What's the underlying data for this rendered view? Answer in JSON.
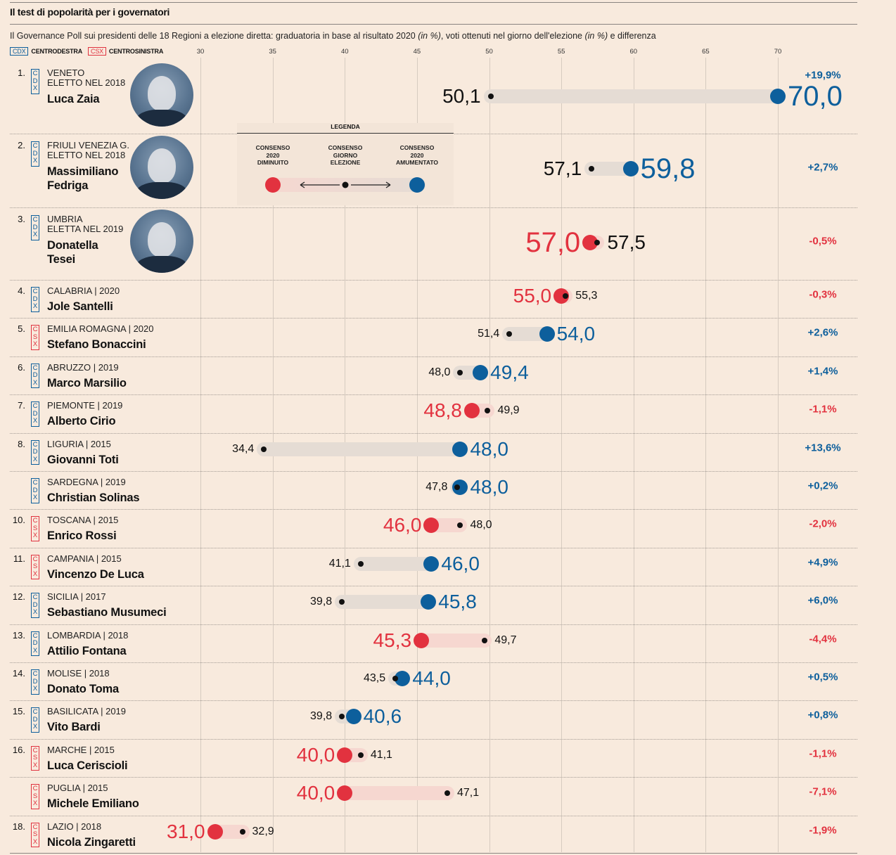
{
  "title": "Il test di popolarità per i governatori",
  "subtitle": {
    "part1": "Il Governance Poll sui presidenti delle 18 Regioni a elezione diretta: graduatoria in base al risultato 2020 ",
    "unit1": "(in %)",
    "part2": ", voti ottenuti nel giorno dell'elezione ",
    "unit2": "(in %)",
    "part3": " e differenza"
  },
  "parties": {
    "cdx": {
      "badge": "CDX",
      "label": "CENTRODESTRA",
      "color": "#0d5f9c"
    },
    "csx": {
      "badge": "CSX",
      "label": "CENTROSINISTRA",
      "color": "#e0323f"
    }
  },
  "legend": {
    "title": "LEGENDA",
    "decreased": "CONSENSO\n2020\nDIMINUITO",
    "election": "CONSENSO\nGIORNO\nELEZIONE",
    "increased": "CONSENSO\n2020\nAMUMENTATO"
  },
  "colors": {
    "increase": "#0d5f9c",
    "decrease": "#e2323f",
    "bar_increase": "#e5dcd4",
    "bar_decrease": "#f6d7d0"
  },
  "chart_data": {
    "type": "dumbbell",
    "title": "Il test di popolarità per i governatori",
    "xlim": [
      30,
      70
    ],
    "x_ticks": [
      "30",
      "35",
      "40",
      "45",
      "50",
      "55",
      "60",
      "65",
      "70"
    ],
    "series": [
      {
        "name": "Consenso giorno elezione"
      },
      {
        "name": "Consenso 2020"
      }
    ],
    "rows": [
      {
        "rank": "1.",
        "party": "cdx",
        "region": "VENETO",
        "elected": "ELETTO NEL 2018",
        "name": "Luca Zaia",
        "photo": true,
        "election": 50.1,
        "y2020": 70.0,
        "election_label": "50,1",
        "label_2020": "70,0",
        "diff": "+19,9%"
      },
      {
        "rank": "2.",
        "party": "cdx",
        "region": "FRIULI VENEZIA G.",
        "elected": "ELETTO NEL 2018",
        "name": "Massimiliano\nFedriga",
        "photo": true,
        "election": 57.1,
        "y2020": 59.8,
        "election_label": "57,1",
        "label_2020": "59,8",
        "diff": "+2,7%"
      },
      {
        "rank": "3.",
        "party": "cdx",
        "region": "UMBRIA",
        "elected": "ELETTA NEL 2019",
        "name": "Donatella\nTesei",
        "photo": true,
        "election": 57.5,
        "y2020": 57.0,
        "election_label": "57,5",
        "label_2020": "57,0",
        "diff": "-0,5%"
      },
      {
        "rank": "4.",
        "party": "cdx",
        "region": "CALABRIA | 2020",
        "name": "Jole Santelli",
        "election": 55.3,
        "y2020": 55.0,
        "election_label": "55,3",
        "label_2020": "55,0",
        "diff": "-0,3%"
      },
      {
        "rank": "5.",
        "party": "csx",
        "region": "EMILIA ROMAGNA | 2020",
        "name": "Stefano Bonaccini",
        "election": 51.4,
        "y2020": 54.0,
        "election_label": "51,4",
        "label_2020": "54,0",
        "diff": "+2,6%"
      },
      {
        "rank": "6.",
        "party": "cdx",
        "region": "ABRUZZO | 2019",
        "name": "Marco Marsilio",
        "election": 48.0,
        "y2020": 49.4,
        "election_label": "48,0",
        "label_2020": "49,4",
        "diff": "+1,4%"
      },
      {
        "rank": "7.",
        "party": "cdx",
        "region": "PIEMONTE | 2019",
        "name": "Alberto Cirio",
        "election": 49.9,
        "y2020": 48.8,
        "election_label": "49,9",
        "label_2020": "48,8",
        "diff": "-1,1%"
      },
      {
        "rank": "8.",
        "party": "cdx",
        "region": "LIGURIA | 2015",
        "name": "Giovanni Toti",
        "election": 34.4,
        "y2020": 48.0,
        "election_label": "34,4",
        "label_2020": "48,0",
        "diff": "+13,6%"
      },
      {
        "rank": "",
        "party": "cdx",
        "region": "SARDEGNA | 2019",
        "name": "Christian Solinas",
        "election": 47.8,
        "y2020": 48.0,
        "election_label": "47,8",
        "label_2020": "48,0",
        "diff": "+0,2%"
      },
      {
        "rank": "10.",
        "party": "csx",
        "region": "TOSCANA | 2015",
        "name": "Enrico Rossi",
        "election": 48.0,
        "y2020": 46.0,
        "election_label": "48,0",
        "label_2020": "46,0",
        "diff": "-2,0%"
      },
      {
        "rank": "11.",
        "party": "csx",
        "region": "CAMPANIA | 2015",
        "name": "Vincenzo De Luca",
        "election": 41.1,
        "y2020": 46.0,
        "election_label": "41,1",
        "label_2020": "46,0",
        "diff": "+4,9%"
      },
      {
        "rank": "12.",
        "party": "cdx",
        "region": "SICILIA | 2017",
        "name": "Sebastiano Musumeci",
        "election": 39.8,
        "y2020": 45.8,
        "election_label": "39,8",
        "label_2020": "45,8",
        "diff": "+6,0%"
      },
      {
        "rank": "13.",
        "party": "cdx",
        "region": "LOMBARDIA | 2018",
        "name": "Attilio Fontana",
        "election": 49.7,
        "y2020": 45.3,
        "election_label": "49,7",
        "label_2020": "45,3",
        "diff": "-4,4%"
      },
      {
        "rank": "14.",
        "party": "cdx",
        "region": "MOLISE | 2018",
        "name": "Donato Toma",
        "election": 43.5,
        "y2020": 44.0,
        "election_label": "43,5",
        "label_2020": "44,0",
        "diff": "+0,5%"
      },
      {
        "rank": "15.",
        "party": "cdx",
        "region": "BASILICATA | 2019",
        "name": "Vito Bardi",
        "election": 39.8,
        "y2020": 40.6,
        "election_label": "39,8",
        "label_2020": "40,6",
        "diff": "+0,8%"
      },
      {
        "rank": "16.",
        "party": "csx",
        "region": "MARCHE | 2015",
        "name": "Luca Ceriscioli",
        "election": 41.1,
        "y2020": 40.0,
        "election_label": "41,1",
        "label_2020": "40,0",
        "diff": "-1,1%"
      },
      {
        "rank": "",
        "party": "csx",
        "region": "PUGLIA | 2015",
        "name": "Michele Emiliano",
        "election": 47.1,
        "y2020": 40.0,
        "election_label": "47,1",
        "label_2020": "40,0",
        "diff": "-7,1%"
      },
      {
        "rank": "18.",
        "party": "csx",
        "region": "LAZIO | 2018",
        "name": "Nicola Zingaretti",
        "election": 32.9,
        "y2020": 31.0,
        "election_label": "32,9",
        "label_2020": "31,0",
        "diff": "-1,9%"
      }
    ]
  }
}
